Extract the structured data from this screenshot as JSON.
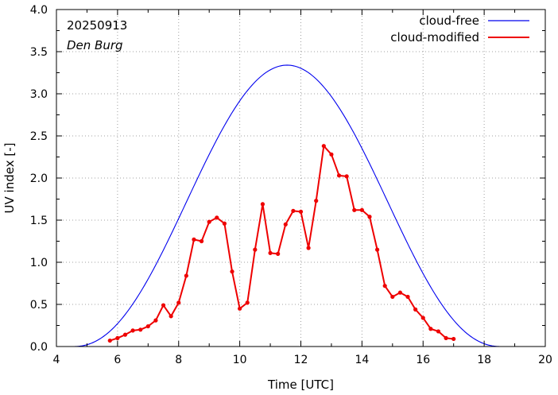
{
  "chart_data": {
    "type": "line",
    "title": "",
    "annotations": {
      "date": "20250913",
      "station": "Den Burg"
    },
    "xlabel": "Time  [UTC]",
    "ylabel": "UV index  [-]",
    "xlim": [
      4,
      20
    ],
    "ylim": [
      0.0,
      4.0
    ],
    "xticks": [
      4,
      6,
      8,
      10,
      12,
      14,
      16,
      18,
      20
    ],
    "yticks": [
      "0.0",
      "0.5",
      "1.0",
      "1.5",
      "2.0",
      "2.5",
      "3.0",
      "3.5",
      "4.0"
    ],
    "legend": {
      "placement": "top-right"
    },
    "series": [
      {
        "name": "cloud-free",
        "color": "#0000ee",
        "style": "line",
        "model": {
          "start": 4.55,
          "end": 18.55,
          "peak_time": 11.55,
          "peak": 3.34
        }
      },
      {
        "name": "cloud-modified",
        "color": "#ee0000",
        "style": "line-points",
        "x": [
          5.75,
          6.0,
          6.25,
          6.5,
          6.75,
          7.0,
          7.25,
          7.5,
          7.75,
          8.0,
          8.25,
          8.5,
          8.75,
          9.0,
          9.25,
          9.5,
          9.75,
          10.0,
          10.25,
          10.5,
          10.75,
          11.0,
          11.25,
          11.5,
          11.75,
          12.0,
          12.25,
          12.5,
          12.75,
          13.0,
          13.25,
          13.5,
          13.75,
          14.0,
          14.25,
          14.5,
          14.75,
          15.0,
          15.25,
          15.5,
          15.75,
          16.0,
          16.25,
          16.5,
          16.75,
          17.0
        ],
        "y": [
          0.07,
          0.1,
          0.14,
          0.19,
          0.2,
          0.24,
          0.31,
          0.49,
          0.36,
          0.52,
          0.84,
          1.27,
          1.25,
          1.48,
          1.53,
          1.46,
          0.89,
          0.45,
          0.52,
          1.15,
          1.69,
          1.11,
          1.1,
          1.45,
          1.61,
          1.6,
          1.17,
          1.73,
          2.38,
          2.28,
          2.03,
          2.02,
          1.62,
          1.62,
          1.54,
          1.15,
          0.72,
          0.59,
          0.64,
          0.59,
          0.44,
          0.34,
          0.21,
          0.18,
          0.1,
          0.09
        ]
      }
    ]
  }
}
